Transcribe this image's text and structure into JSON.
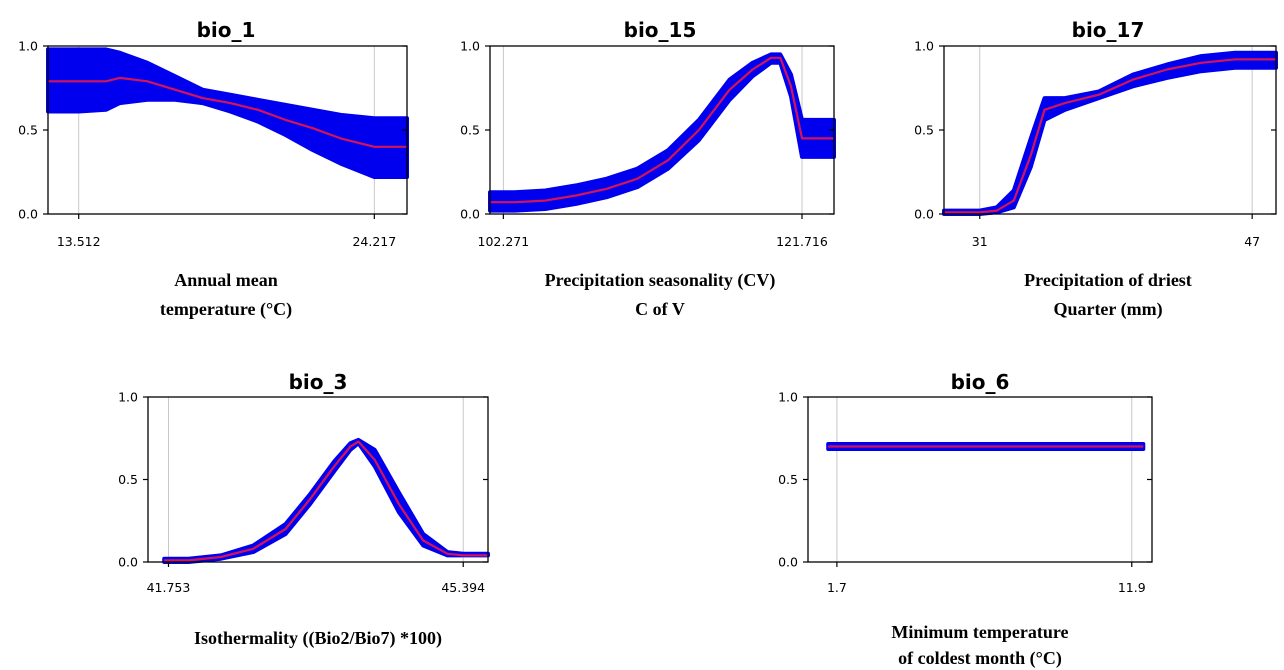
{
  "chart_data": [
    {
      "type": "line",
      "title": "bio_1",
      "xlabel": [
        "Annual mean",
        "temperature (°C)"
      ],
      "x_tick_labels": [
        "13.512",
        "24.217"
      ],
      "x_tick_values": [
        13.512,
        24.217
      ],
      "xlim": [
        12.4,
        25.4
      ],
      "ylim": [
        0,
        1
      ],
      "y_tick_labels": [
        "0.0",
        "0.5",
        "1.0"
      ],
      "y_tick_values": [
        0,
        0.5,
        1
      ],
      "grid": true,
      "series": [
        {
          "x": [
            12.4,
            13.512,
            14.5,
            15.0,
            16.0,
            17.0,
            18.0,
            19.0,
            20.0,
            21.0,
            22.0,
            23.0,
            24.217,
            25.4
          ],
          "mean": [
            0.79,
            0.79,
            0.79,
            0.81,
            0.79,
            0.74,
            0.69,
            0.66,
            0.62,
            0.56,
            0.51,
            0.45,
            0.4,
            0.4
          ],
          "lower": [
            0.61,
            0.61,
            0.62,
            0.66,
            0.68,
            0.68,
            0.66,
            0.61,
            0.55,
            0.47,
            0.38,
            0.3,
            0.22,
            0.22
          ],
          "upper": [
            0.98,
            0.98,
            0.98,
            0.96,
            0.9,
            0.82,
            0.74,
            0.71,
            0.68,
            0.65,
            0.62,
            0.59,
            0.57,
            0.57
          ]
        }
      ]
    },
    {
      "type": "line",
      "title": "bio_15",
      "xlabel": [
        "Precipitation seasonality (CV)",
        "C of V"
      ],
      "x_tick_labels": [
        "102.271",
        "121.716"
      ],
      "x_tick_values": [
        102.271,
        121.716
      ],
      "xlim": [
        101.4,
        123.8
      ],
      "ylim": [
        0,
        1
      ],
      "y_tick_labels": [
        "0.0",
        "0.5",
        "1.0"
      ],
      "y_tick_values": [
        0,
        0.5,
        1
      ],
      "grid": true,
      "series": [
        {
          "x": [
            101.4,
            103.0,
            105.0,
            107.0,
            109.0,
            111.0,
            113.0,
            115.0,
            117.0,
            118.5,
            119.7,
            120.3,
            121.0,
            121.716,
            123.8
          ],
          "mean": [
            0.07,
            0.07,
            0.08,
            0.11,
            0.15,
            0.21,
            0.32,
            0.5,
            0.74,
            0.86,
            0.93,
            0.93,
            0.76,
            0.45,
            0.45
          ],
          "lower": [
            0.02,
            0.02,
            0.03,
            0.06,
            0.1,
            0.16,
            0.27,
            0.44,
            0.68,
            0.82,
            0.9,
            0.9,
            0.7,
            0.34,
            0.34
          ],
          "upper": [
            0.13,
            0.13,
            0.14,
            0.17,
            0.21,
            0.27,
            0.38,
            0.56,
            0.8,
            0.9,
            0.95,
            0.95,
            0.83,
            0.56,
            0.56
          ]
        }
      ]
    },
    {
      "type": "line",
      "title": "bio_17",
      "xlabel": [
        "Precipitation of driest",
        "Quarter (mm)"
      ],
      "x_tick_labels": [
        "31",
        "47"
      ],
      "x_tick_values": [
        31,
        47
      ],
      "xlim": [
        28.9,
        48.4
      ],
      "ylim": [
        0,
        1
      ],
      "y_tick_labels": [
        "0.0",
        "0.5",
        "1.0"
      ],
      "y_tick_values": [
        0,
        0.5,
        1
      ],
      "grid": true,
      "series": [
        {
          "x": [
            28.9,
            31.0,
            32.0,
            33.0,
            34.0,
            34.8,
            36.0,
            38.0,
            40.0,
            42.0,
            44.0,
            46.0,
            47.0,
            48.4
          ],
          "mean": [
            0.01,
            0.01,
            0.02,
            0.08,
            0.35,
            0.62,
            0.66,
            0.71,
            0.8,
            0.86,
            0.9,
            0.92,
            0.92,
            0.92
          ],
          "lower": [
            0.0,
            0.0,
            0.01,
            0.04,
            0.28,
            0.56,
            0.62,
            0.69,
            0.76,
            0.81,
            0.85,
            0.87,
            0.87,
            0.87
          ],
          "upper": [
            0.02,
            0.02,
            0.04,
            0.14,
            0.45,
            0.69,
            0.69,
            0.73,
            0.83,
            0.89,
            0.94,
            0.96,
            0.96,
            0.96
          ]
        }
      ]
    },
    {
      "type": "line",
      "title": "bio_3",
      "xlabel": [
        "Isothermality ((Bio2/Bio7) *100)"
      ],
      "x_tick_labels": [
        "41.753",
        "45.394"
      ],
      "x_tick_values": [
        41.753,
        45.394
      ],
      "xlim": [
        41.5,
        45.7
      ],
      "ylim": [
        0,
        1
      ],
      "y_tick_labels": [
        "0.0",
        "0.5",
        "1.0"
      ],
      "y_tick_values": [
        0,
        0.5,
        1
      ],
      "grid": true,
      "series": [
        {
          "x": [
            41.7,
            42.0,
            42.4,
            42.8,
            43.2,
            43.5,
            43.8,
            44.0,
            44.1,
            44.3,
            44.6,
            44.9,
            45.2,
            45.394,
            45.7
          ],
          "mean": [
            0.01,
            0.01,
            0.03,
            0.08,
            0.2,
            0.38,
            0.58,
            0.7,
            0.73,
            0.62,
            0.35,
            0.13,
            0.05,
            0.04,
            0.04
          ],
          "lower": [
            0.0,
            0.0,
            0.02,
            0.06,
            0.17,
            0.35,
            0.55,
            0.68,
            0.72,
            0.58,
            0.3,
            0.1,
            0.04,
            0.04,
            0.04
          ],
          "upper": [
            0.02,
            0.02,
            0.04,
            0.1,
            0.23,
            0.41,
            0.61,
            0.72,
            0.74,
            0.68,
            0.42,
            0.17,
            0.06,
            0.05,
            0.05
          ]
        }
      ]
    },
    {
      "type": "line",
      "title": "bio_6",
      "xlabel": [
        "Minimum temperature",
        "of coldest month (°C)"
      ],
      "x_tick_labels": [
        "1.7",
        "11.9"
      ],
      "x_tick_values": [
        1.7,
        11.9
      ],
      "xlim": [
        0.7,
        12.6
      ],
      "ylim": [
        0,
        1
      ],
      "y_tick_labels": [
        "0.0",
        "0.5",
        "1.0"
      ],
      "y_tick_values": [
        0,
        0.5,
        1
      ],
      "grid": true,
      "series": [
        {
          "x": [
            1.4,
            12.3
          ],
          "mean": [
            0.7,
            0.7
          ],
          "lower": [
            0.685,
            0.685
          ],
          "upper": [
            0.715,
            0.715
          ]
        }
      ]
    }
  ],
  "colors": {
    "band": "#0000ee",
    "mean_line": "#d4145a",
    "grid": "#c8c8c8",
    "axis": "#000000"
  }
}
